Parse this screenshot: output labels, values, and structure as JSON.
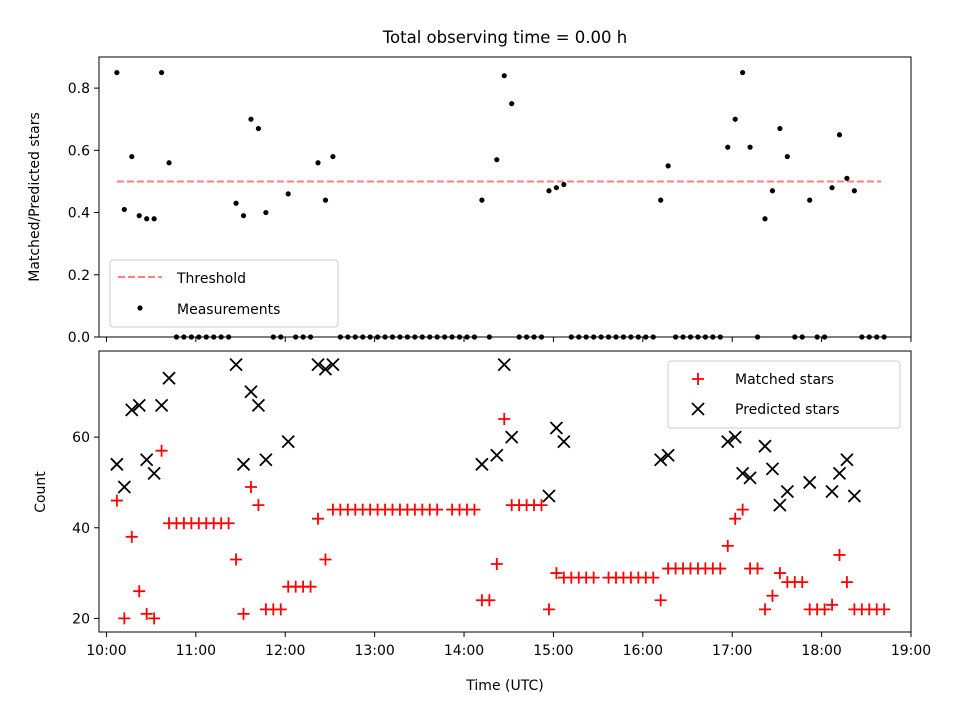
{
  "figure": {
    "title": "Total observing time = 0.00 h"
  },
  "chart_data": [
    {
      "type": "scatter",
      "panel": "top",
      "ylabel": "Matched/Predicted stars",
      "xlim": [
        "09:55",
        "19:00"
      ],
      "ylim": [
        0,
        0.9
      ],
      "xticks": [
        "10:00",
        "11:00",
        "12:00",
        "13:00",
        "14:00",
        "15:00",
        "16:00",
        "17:00",
        "18:00",
        "19:00"
      ],
      "yticks": [
        "0.0",
        "0.2",
        "0.4",
        "0.6",
        "0.8"
      ],
      "grid": false,
      "legend": "lower-left",
      "threshold": {
        "name": "Threshold",
        "value": 0.5,
        "x": [
          "10:07",
          "18:40"
        ],
        "color": "#ff7f7f",
        "style": "dashed"
      },
      "series": [
        {
          "name": "Measurements",
          "color": "#000000",
          "marker": "dot",
          "points": [
            [
              "10:07",
              0.85
            ],
            [
              "10:12",
              0.41
            ],
            [
              "10:17",
              0.58
            ],
            [
              "10:22",
              0.39
            ],
            [
              "10:27",
              0.38
            ],
            [
              "10:32",
              0.38
            ],
            [
              "10:37",
              0.85
            ],
            [
              "10:42",
              0.56
            ],
            [
              "10:47",
              0.0
            ],
            [
              "10:52",
              0.0
            ],
            [
              "10:57",
              0.0
            ],
            [
              "11:02",
              0.0
            ],
            [
              "11:07",
              0.0
            ],
            [
              "11:12",
              0.0
            ],
            [
              "11:17",
              0.0
            ],
            [
              "11:22",
              0.0
            ],
            [
              "11:27",
              0.43
            ],
            [
              "11:32",
              0.39
            ],
            [
              "11:37",
              0.7
            ],
            [
              "11:42",
              0.67
            ],
            [
              "11:47",
              0.4
            ],
            [
              "11:52",
              0.0
            ],
            [
              "11:57",
              0.0
            ],
            [
              "12:02",
              0.46
            ],
            [
              "12:07",
              0.0
            ],
            [
              "12:12",
              0.0
            ],
            [
              "12:17",
              0.0
            ],
            [
              "12:22",
              0.56
            ],
            [
              "12:27",
              0.44
            ],
            [
              "12:32",
              0.58
            ],
            [
              "12:37",
              0.0
            ],
            [
              "12:42",
              0.0
            ],
            [
              "12:47",
              0.0
            ],
            [
              "12:52",
              0.0
            ],
            [
              "12:57",
              0.0
            ],
            [
              "13:02",
              0.0
            ],
            [
              "13:07",
              0.0
            ],
            [
              "13:12",
              0.0
            ],
            [
              "13:17",
              0.0
            ],
            [
              "13:22",
              0.0
            ],
            [
              "13:27",
              0.0
            ],
            [
              "13:32",
              0.0
            ],
            [
              "13:37",
              0.0
            ],
            [
              "13:42",
              0.0
            ],
            [
              "13:47",
              0.0
            ],
            [
              "13:52",
              0.0
            ],
            [
              "13:57",
              0.0
            ],
            [
              "14:02",
              0.0
            ],
            [
              "14:07",
              0.0
            ],
            [
              "14:12",
              0.44
            ],
            [
              "14:17",
              0.0
            ],
            [
              "14:22",
              0.57
            ],
            [
              "14:27",
              0.84
            ],
            [
              "14:32",
              0.75
            ],
            [
              "14:37",
              0.0
            ],
            [
              "14:42",
              0.0
            ],
            [
              "14:47",
              0.0
            ],
            [
              "14:52",
              0.0
            ],
            [
              "14:57",
              0.47
            ],
            [
              "15:02",
              0.48
            ],
            [
              "15:07",
              0.49
            ],
            [
              "15:12",
              0.0
            ],
            [
              "15:17",
              0.0
            ],
            [
              "15:22",
              0.0
            ],
            [
              "15:27",
              0.0
            ],
            [
              "15:32",
              0.0
            ],
            [
              "15:37",
              0.0
            ],
            [
              "15:42",
              0.0
            ],
            [
              "15:47",
              0.0
            ],
            [
              "15:52",
              0.0
            ],
            [
              "15:57",
              0.0
            ],
            [
              "16:02",
              0.0
            ],
            [
              "16:07",
              0.0
            ],
            [
              "16:12",
              0.44
            ],
            [
              "16:17",
              0.55
            ],
            [
              "16:22",
              0.0
            ],
            [
              "16:27",
              0.0
            ],
            [
              "16:32",
              0.0
            ],
            [
              "16:37",
              0.0
            ],
            [
              "16:42",
              0.0
            ],
            [
              "16:47",
              0.0
            ],
            [
              "16:52",
              0.0
            ],
            [
              "16:57",
              0.61
            ],
            [
              "17:02",
              0.7
            ],
            [
              "17:07",
              0.85
            ],
            [
              "17:12",
              0.61
            ],
            [
              "17:17",
              0.0
            ],
            [
              "17:22",
              0.38
            ],
            [
              "17:27",
              0.47
            ],
            [
              "17:32",
              0.67
            ],
            [
              "17:37",
              0.58
            ],
            [
              "17:42",
              0.0
            ],
            [
              "17:47",
              0.0
            ],
            [
              "17:52",
              0.44
            ],
            [
              "17:57",
              0.0
            ],
            [
              "18:02",
              0.0
            ],
            [
              "18:07",
              0.48
            ],
            [
              "18:12",
              0.65
            ],
            [
              "18:17",
              0.51
            ],
            [
              "18:22",
              0.47
            ],
            [
              "18:27",
              0.0
            ],
            [
              "18:32",
              0.0
            ],
            [
              "18:37",
              0.0
            ],
            [
              "18:42",
              0.0
            ]
          ]
        }
      ]
    },
    {
      "type": "scatter",
      "panel": "bottom",
      "xlabel": "Time (UTC)",
      "ylabel": "Count",
      "xlim": [
        "09:55",
        "19:00"
      ],
      "ylim": [
        17,
        79
      ],
      "xticks": [
        "10:00",
        "11:00",
        "12:00",
        "13:00",
        "14:00",
        "15:00",
        "16:00",
        "17:00",
        "18:00",
        "19:00"
      ],
      "yticks": [
        "20",
        "40",
        "60"
      ],
      "grid": false,
      "legend": "upper-right",
      "series": [
        {
          "name": "Matched stars",
          "color": "#ff0000",
          "marker": "plus",
          "points": [
            [
              "10:07",
              46
            ],
            [
              "10:12",
              20
            ],
            [
              "10:17",
              38
            ],
            [
              "10:22",
              26
            ],
            [
              "10:27",
              21
            ],
            [
              "10:32",
              20
            ],
            [
              "10:37",
              57
            ],
            [
              "10:42",
              41
            ],
            [
              "10:47",
              41
            ],
            [
              "10:52",
              41
            ],
            [
              "10:57",
              41
            ],
            [
              "11:02",
              41
            ],
            [
              "11:07",
              41
            ],
            [
              "11:12",
              41
            ],
            [
              "11:17",
              41
            ],
            [
              "11:22",
              41
            ],
            [
              "11:27",
              33
            ],
            [
              "11:32",
              21
            ],
            [
              "11:37",
              49
            ],
            [
              "11:42",
              45
            ],
            [
              "11:47",
              22
            ],
            [
              "11:52",
              22
            ],
            [
              "11:57",
              22
            ],
            [
              "12:02",
              27
            ],
            [
              "12:07",
              27
            ],
            [
              "12:12",
              27
            ],
            [
              "12:17",
              27
            ],
            [
              "12:22",
              42
            ],
            [
              "12:27",
              33
            ],
            [
              "12:32",
              44
            ],
            [
              "12:37",
              44
            ],
            [
              "12:42",
              44
            ],
            [
              "12:47",
              44
            ],
            [
              "12:52",
              44
            ],
            [
              "12:57",
              44
            ],
            [
              "13:02",
              44
            ],
            [
              "13:07",
              44
            ],
            [
              "13:12",
              44
            ],
            [
              "13:17",
              44
            ],
            [
              "13:22",
              44
            ],
            [
              "13:27",
              44
            ],
            [
              "13:32",
              44
            ],
            [
              "13:37",
              44
            ],
            [
              "13:42",
              44
            ],
            [
              "13:52",
              44
            ],
            [
              "13:57",
              44
            ],
            [
              "14:02",
              44
            ],
            [
              "14:07",
              44
            ],
            [
              "14:12",
              24
            ],
            [
              "14:17",
              24
            ],
            [
              "14:22",
              32
            ],
            [
              "14:27",
              64
            ],
            [
              "14:32",
              45
            ],
            [
              "14:37",
              45
            ],
            [
              "14:42",
              45
            ],
            [
              "14:47",
              45
            ],
            [
              "14:52",
              45
            ],
            [
              "14:57",
              22
            ],
            [
              "15:02",
              30
            ],
            [
              "15:07",
              29
            ],
            [
              "15:12",
              29
            ],
            [
              "15:17",
              29
            ],
            [
              "15:22",
              29
            ],
            [
              "15:27",
              29
            ],
            [
              "15:37",
              29
            ],
            [
              "15:42",
              29
            ],
            [
              "15:47",
              29
            ],
            [
              "15:52",
              29
            ],
            [
              "15:57",
              29
            ],
            [
              "16:02",
              29
            ],
            [
              "16:07",
              29
            ],
            [
              "16:12",
              24
            ],
            [
              "16:17",
              31
            ],
            [
              "16:22",
              31
            ],
            [
              "16:27",
              31
            ],
            [
              "16:32",
              31
            ],
            [
              "16:37",
              31
            ],
            [
              "16:42",
              31
            ],
            [
              "16:47",
              31
            ],
            [
              "16:52",
              31
            ],
            [
              "16:57",
              36
            ],
            [
              "17:02",
              42
            ],
            [
              "17:07",
              44
            ],
            [
              "17:12",
              31
            ],
            [
              "17:17",
              31
            ],
            [
              "17:22",
              22
            ],
            [
              "17:27",
              25
            ],
            [
              "17:32",
              30
            ],
            [
              "17:37",
              28
            ],
            [
              "17:42",
              28
            ],
            [
              "17:47",
              28
            ],
            [
              "17:52",
              22
            ],
            [
              "17:57",
              22
            ],
            [
              "18:02",
              22
            ],
            [
              "18:07",
              23
            ],
            [
              "18:12",
              34
            ],
            [
              "18:17",
              28
            ],
            [
              "18:22",
              22
            ],
            [
              "18:27",
              22
            ],
            [
              "18:32",
              22
            ],
            [
              "18:37",
              22
            ],
            [
              "18:42",
              22
            ]
          ]
        },
        {
          "name": "Predicted stars",
          "color": "#000000",
          "marker": "x",
          "points": [
            [
              "10:07",
              54
            ],
            [
              "10:12",
              49
            ],
            [
              "10:17",
              66
            ],
            [
              "10:22",
              67
            ],
            [
              "10:27",
              55
            ],
            [
              "10:32",
              52
            ],
            [
              "10:37",
              67
            ],
            [
              "10:42",
              73
            ],
            [
              "11:27",
              76
            ],
            [
              "11:32",
              54
            ],
            [
              "11:37",
              70
            ],
            [
              "11:42",
              67
            ],
            [
              "11:47",
              55
            ],
            [
              "12:02",
              59
            ],
            [
              "12:22",
              76
            ],
            [
              "12:27",
              75
            ],
            [
              "12:32",
              76
            ],
            [
              "14:12",
              54
            ],
            [
              "14:22",
              56
            ],
            [
              "14:27",
              76
            ],
            [
              "14:32",
              60
            ],
            [
              "14:57",
              47
            ],
            [
              "15:02",
              62
            ],
            [
              "15:07",
              59
            ],
            [
              "16:12",
              55
            ],
            [
              "16:17",
              56
            ],
            [
              "16:57",
              59
            ],
            [
              "17:02",
              60
            ],
            [
              "17:07",
              52
            ],
            [
              "17:12",
              51
            ],
            [
              "17:22",
              58
            ],
            [
              "17:27",
              53
            ],
            [
              "17:32",
              45
            ],
            [
              "17:37",
              48
            ],
            [
              "17:52",
              50
            ],
            [
              "18:07",
              48
            ],
            [
              "18:12",
              52
            ],
            [
              "18:17",
              55
            ],
            [
              "18:22",
              47
            ]
          ]
        }
      ]
    }
  ]
}
